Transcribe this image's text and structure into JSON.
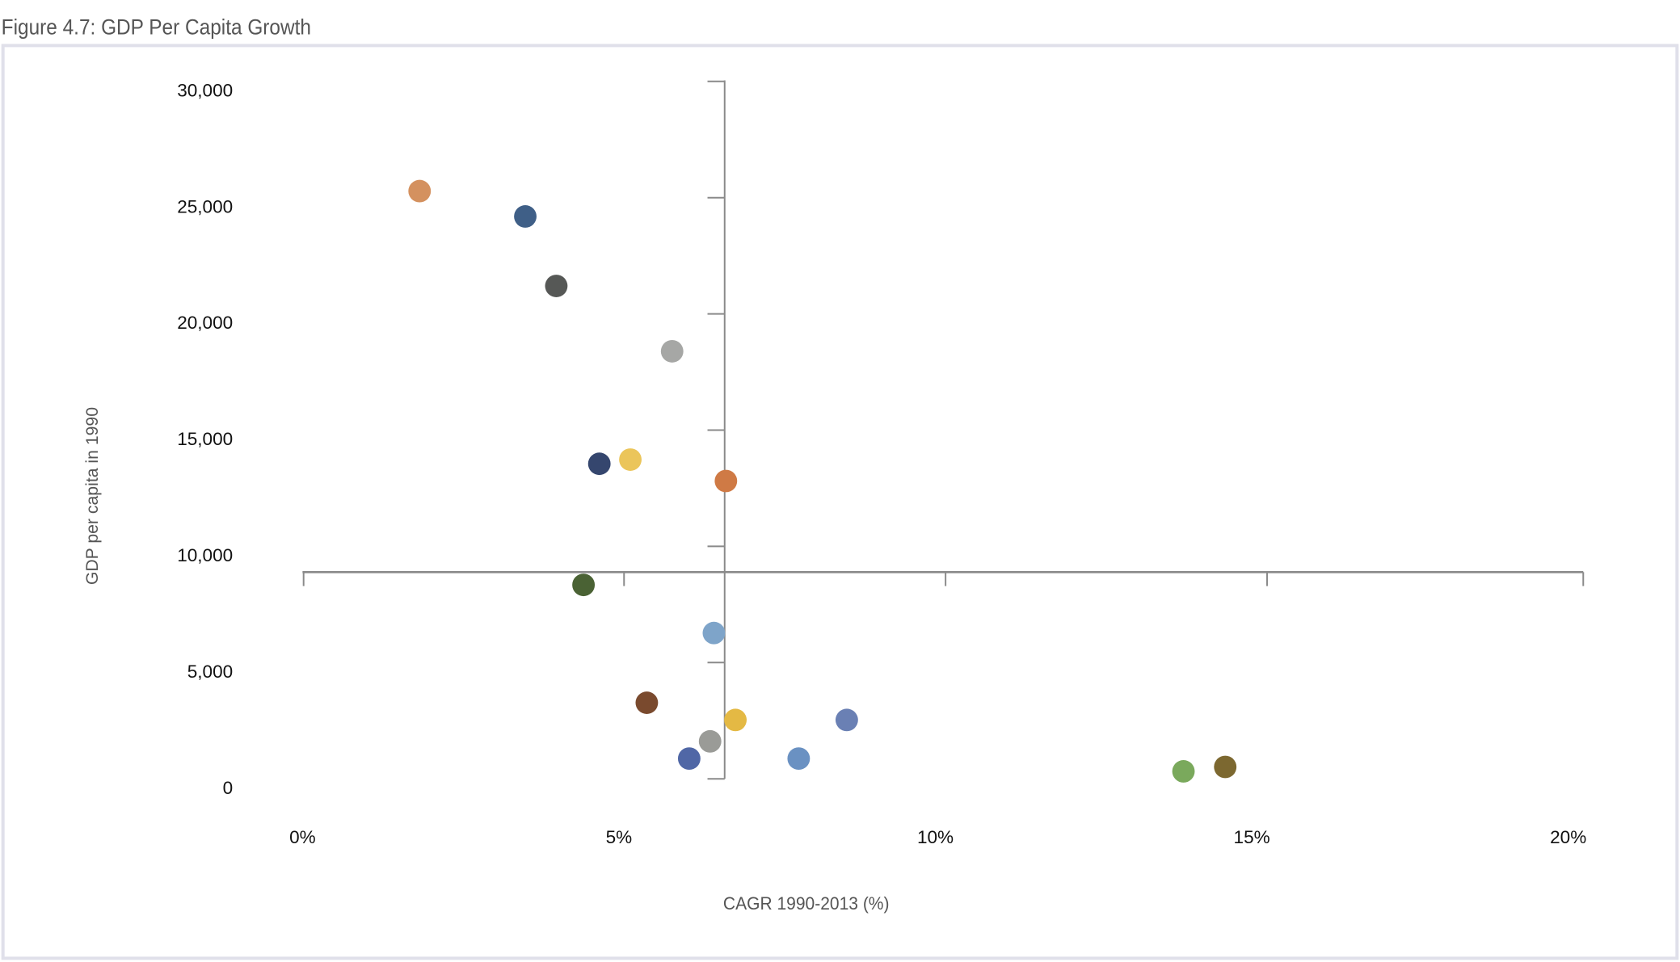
{
  "chart_data": {
    "type": "scatter",
    "title": "Figure 4.7: GDP Per Capita Growth",
    "xlabel": "CAGR 1990-2013 (%)",
    "ylabel": "GDP per capita in 1990",
    "xlim": [
      0,
      20
    ],
    "ylim": [
      0,
      30000
    ],
    "x_ticks": [
      0,
      5,
      10,
      15,
      20
    ],
    "x_tick_labels": [
      "0%",
      "5%",
      "10%",
      "15%",
      "20%"
    ],
    "y_ticks": [
      0,
      5000,
      10000,
      15000,
      20000,
      25000,
      30000
    ],
    "y_tick_labels": [
      "0",
      "5,000",
      "10,000",
      "15,000",
      "20,000",
      "25,000",
      "30,000"
    ],
    "axis_cross": {
      "x": 6.67,
      "y": 9260
    },
    "grid": false,
    "points": [
      {
        "x": 1.85,
        "y": 25650,
        "color": "#d4915f"
      },
      {
        "x": 3.52,
        "y": 24560,
        "color": "#3f5f87"
      },
      {
        "x": 4.01,
        "y": 21570,
        "color": "#565856"
      },
      {
        "x": 5.84,
        "y": 18760,
        "color": "#a6a7a5"
      },
      {
        "x": 4.69,
        "y": 13920,
        "color": "#35466e"
      },
      {
        "x": 5.18,
        "y": 14100,
        "color": "#ebc55a"
      },
      {
        "x": 6.69,
        "y": 13180,
        "color": "#cf7a45"
      },
      {
        "x": 4.44,
        "y": 8710,
        "color": "#4a6234"
      },
      {
        "x": 6.5,
        "y": 6640,
        "color": "#7ea4c9"
      },
      {
        "x": 5.44,
        "y": 3640,
        "color": "#7a4a2e"
      },
      {
        "x": 6.84,
        "y": 2900,
        "color": "#e4b944"
      },
      {
        "x": 8.6,
        "y": 2900,
        "color": "#6a80b4"
      },
      {
        "x": 6.44,
        "y": 1980,
        "color": "#9a9b97"
      },
      {
        "x": 6.11,
        "y": 1240,
        "color": "#5067a6"
      },
      {
        "x": 7.84,
        "y": 1240,
        "color": "#6a91c2"
      },
      {
        "x": 13.92,
        "y": 690,
        "color": "#7aa95c"
      },
      {
        "x": 14.58,
        "y": 880,
        "color": "#7c6830"
      }
    ]
  }
}
